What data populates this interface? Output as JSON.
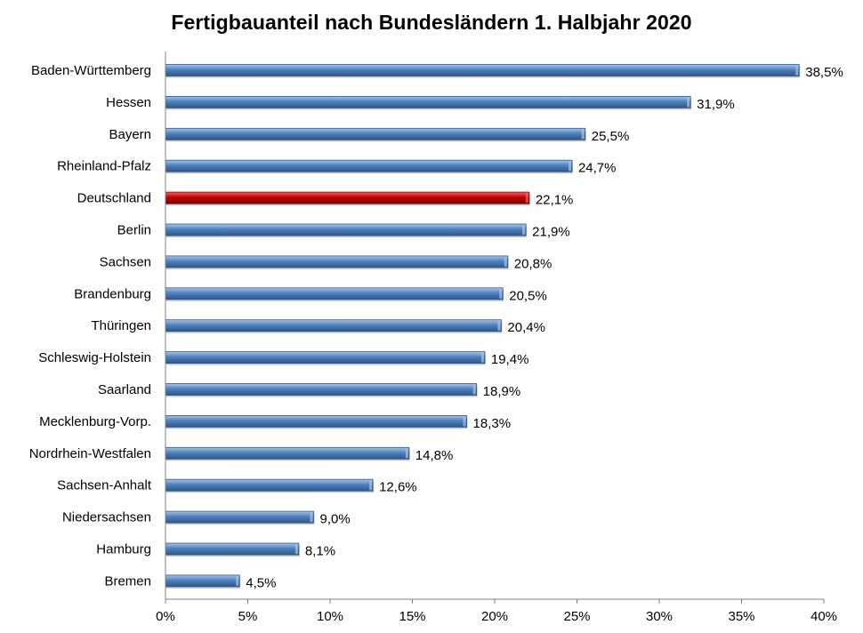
{
  "chart_data": {
    "type": "bar",
    "orientation": "horizontal",
    "title": "Fertigbauanteil nach Bundesländern 1. Halbjahr 2020",
    "xlabel": "",
    "ylabel": "",
    "categories": [
      "Baden-Württemberg",
      "Hessen",
      "Bayern",
      "Rheinland-Pfalz",
      "Deutschland",
      "Berlin",
      "Sachsen",
      "Brandenburg",
      "Thüringen",
      "Schleswig-Holstein",
      "Saarland",
      "Mecklenburg-Vorp.",
      "Nordrhein-Westfalen",
      "Sachsen-Anhalt",
      "Niedersachsen",
      "Hamburg",
      "Bremen"
    ],
    "values": [
      38.5,
      31.9,
      25.5,
      24.7,
      22.1,
      21.9,
      20.8,
      20.5,
      20.4,
      19.4,
      18.9,
      18.3,
      14.8,
      12.6,
      9.0,
      8.1,
      4.5
    ],
    "value_labels": [
      "38,5%",
      "31,9%",
      "25,5%",
      "24,7%",
      "22,1%",
      "21,9%",
      "20,8%",
      "20,5%",
      "20,4%",
      "19,4%",
      "18,9%",
      "18,3%",
      "14,8%",
      "12,6%",
      "9,0%",
      "8,1%",
      "4,5%"
    ],
    "highlight_category": "Deutschland",
    "xlim": [
      0,
      40
    ],
    "x_ticks": [
      0,
      5,
      10,
      15,
      20,
      25,
      30,
      35,
      40
    ],
    "x_tick_labels": [
      "0%",
      "5%",
      "10%",
      "15%",
      "20%",
      "25%",
      "30%",
      "35%",
      "40%"
    ],
    "grid": false,
    "legend": "none",
    "colors": {
      "bar": "#4f81bd",
      "bar_light": "#a9c4e8",
      "bar_dark": "#2d5789",
      "highlight": "#c00000",
      "highlight_light": "#f06a6a",
      "highlight_dark": "#7a0000",
      "axis": "#808080"
    }
  }
}
